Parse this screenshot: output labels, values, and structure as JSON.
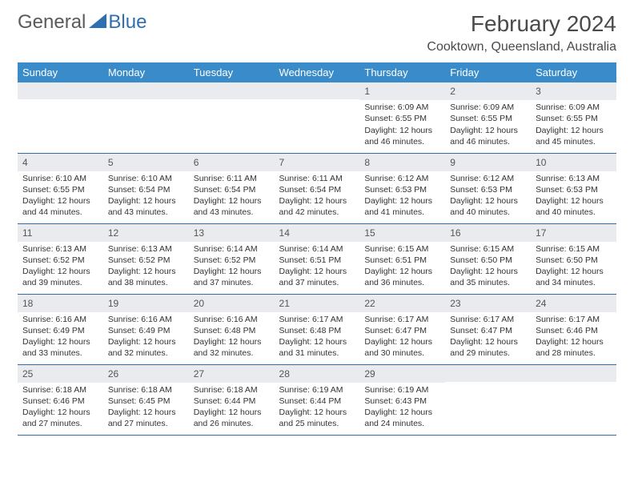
{
  "logo": {
    "general": "General",
    "blue": "Blue"
  },
  "title": "February 2024",
  "location": "Cooktown, Queensland, Australia",
  "colors": {
    "header_bg": "#3a8bc9",
    "header_text": "#ffffff",
    "daynum_bg": "#e9ebee",
    "border": "#2f6fb0",
    "logo_gray": "#5a5a5a",
    "logo_blue": "#2f6fb0"
  },
  "day_names": [
    "Sunday",
    "Monday",
    "Tuesday",
    "Wednesday",
    "Thursday",
    "Friday",
    "Saturday"
  ],
  "weeks": [
    [
      null,
      null,
      null,
      null,
      {
        "n": "1",
        "sr": "6:09 AM",
        "ss": "6:55 PM",
        "dh": "12",
        "dm": "46"
      },
      {
        "n": "2",
        "sr": "6:09 AM",
        "ss": "6:55 PM",
        "dh": "12",
        "dm": "46"
      },
      {
        "n": "3",
        "sr": "6:09 AM",
        "ss": "6:55 PM",
        "dh": "12",
        "dm": "45"
      }
    ],
    [
      {
        "n": "4",
        "sr": "6:10 AM",
        "ss": "6:55 PM",
        "dh": "12",
        "dm": "44"
      },
      {
        "n": "5",
        "sr": "6:10 AM",
        "ss": "6:54 PM",
        "dh": "12",
        "dm": "43"
      },
      {
        "n": "6",
        "sr": "6:11 AM",
        "ss": "6:54 PM",
        "dh": "12",
        "dm": "43"
      },
      {
        "n": "7",
        "sr": "6:11 AM",
        "ss": "6:54 PM",
        "dh": "12",
        "dm": "42"
      },
      {
        "n": "8",
        "sr": "6:12 AM",
        "ss": "6:53 PM",
        "dh": "12",
        "dm": "41"
      },
      {
        "n": "9",
        "sr": "6:12 AM",
        "ss": "6:53 PM",
        "dh": "12",
        "dm": "40"
      },
      {
        "n": "10",
        "sr": "6:13 AM",
        "ss": "6:53 PM",
        "dh": "12",
        "dm": "40"
      }
    ],
    [
      {
        "n": "11",
        "sr": "6:13 AM",
        "ss": "6:52 PM",
        "dh": "12",
        "dm": "39"
      },
      {
        "n": "12",
        "sr": "6:13 AM",
        "ss": "6:52 PM",
        "dh": "12",
        "dm": "38"
      },
      {
        "n": "13",
        "sr": "6:14 AM",
        "ss": "6:52 PM",
        "dh": "12",
        "dm": "37"
      },
      {
        "n": "14",
        "sr": "6:14 AM",
        "ss": "6:51 PM",
        "dh": "12",
        "dm": "37"
      },
      {
        "n": "15",
        "sr": "6:15 AM",
        "ss": "6:51 PM",
        "dh": "12",
        "dm": "36"
      },
      {
        "n": "16",
        "sr": "6:15 AM",
        "ss": "6:50 PM",
        "dh": "12",
        "dm": "35"
      },
      {
        "n": "17",
        "sr": "6:15 AM",
        "ss": "6:50 PM",
        "dh": "12",
        "dm": "34"
      }
    ],
    [
      {
        "n": "18",
        "sr": "6:16 AM",
        "ss": "6:49 PM",
        "dh": "12",
        "dm": "33"
      },
      {
        "n": "19",
        "sr": "6:16 AM",
        "ss": "6:49 PM",
        "dh": "12",
        "dm": "32"
      },
      {
        "n": "20",
        "sr": "6:16 AM",
        "ss": "6:48 PM",
        "dh": "12",
        "dm": "32"
      },
      {
        "n": "21",
        "sr": "6:17 AM",
        "ss": "6:48 PM",
        "dh": "12",
        "dm": "31"
      },
      {
        "n": "22",
        "sr": "6:17 AM",
        "ss": "6:47 PM",
        "dh": "12",
        "dm": "30"
      },
      {
        "n": "23",
        "sr": "6:17 AM",
        "ss": "6:47 PM",
        "dh": "12",
        "dm": "29"
      },
      {
        "n": "24",
        "sr": "6:17 AM",
        "ss": "6:46 PM",
        "dh": "12",
        "dm": "28"
      }
    ],
    [
      {
        "n": "25",
        "sr": "6:18 AM",
        "ss": "6:46 PM",
        "dh": "12",
        "dm": "27"
      },
      {
        "n": "26",
        "sr": "6:18 AM",
        "ss": "6:45 PM",
        "dh": "12",
        "dm": "27"
      },
      {
        "n": "27",
        "sr": "6:18 AM",
        "ss": "6:44 PM",
        "dh": "12",
        "dm": "26"
      },
      {
        "n": "28",
        "sr": "6:19 AM",
        "ss": "6:44 PM",
        "dh": "12",
        "dm": "25"
      },
      {
        "n": "29",
        "sr": "6:19 AM",
        "ss": "6:43 PM",
        "dh": "12",
        "dm": "24"
      },
      null,
      null
    ]
  ],
  "labels": {
    "sunrise": "Sunrise:",
    "sunset": "Sunset:",
    "daylight": "Daylight:",
    "hours": "hours",
    "and": "and",
    "minutes": "minutes."
  }
}
